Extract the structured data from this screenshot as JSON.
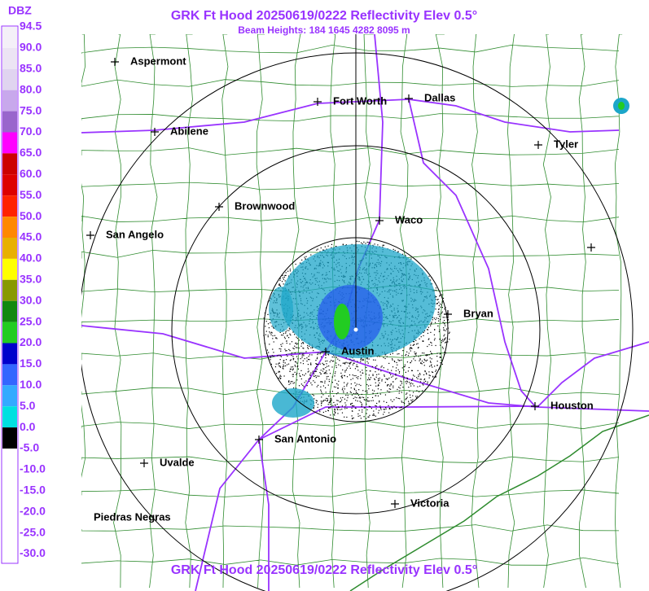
{
  "header": {
    "title": "GRK Ft Hood 20250619/0222 Reflectivity Elev 0.5°",
    "subtitle": "Beam Heights: 184 1645 4282 8095 m"
  },
  "footer": {
    "title": "GRK Ft Hood 20250619/0222 Reflectivity Elev 0.5°"
  },
  "legend": {
    "unit": "DBZ",
    "labels": [
      "94.5",
      "90.0",
      "85.0",
      "80.0",
      "75.0",
      "70.0",
      "65.0",
      "60.0",
      "55.0",
      "50.0",
      "45.0",
      "40.0",
      "35.0",
      "30.0",
      "25.0",
      "20.0",
      "15.0",
      "10.0",
      "5.0",
      "0.0",
      "-5.0",
      "-10.0",
      "-15.0",
      "-20.0",
      "-25.0",
      "-30.0"
    ]
  },
  "cities": [
    {
      "name": "Aspermont"
    },
    {
      "name": "Fort Worth"
    },
    {
      "name": "Dallas"
    },
    {
      "name": "Abilene"
    },
    {
      "name": "Tyler"
    },
    {
      "name": "Brownwood"
    },
    {
      "name": "Waco"
    },
    {
      "name": "San Angelo"
    },
    {
      "name": "Bryan"
    },
    {
      "name": "Austin"
    },
    {
      "name": "Houston"
    },
    {
      "name": "San Antonio"
    },
    {
      "name": "Uvalde"
    },
    {
      "name": "Victoria"
    },
    {
      "name": "Piedras Negras"
    }
  ]
}
